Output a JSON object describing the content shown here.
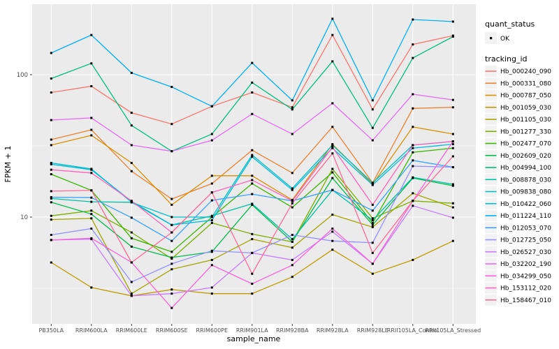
{
  "figure": {
    "background": "#FFFFFF",
    "panel_background": "#EBEBEB",
    "grid_color": "#FFFFFF",
    "tick_label_color": "#4D4D4D",
    "axis_title_color": "#000000",
    "point_color": "#000000",
    "legend_key_background": "#F2F2F2"
  },
  "axes": {
    "x_title": "sample_name",
    "y_title": "FPKM + 1",
    "y_scale": "log10",
    "y_tick_labels": [
      "100",
      "10"
    ],
    "y_tick_values": [
      100,
      10
    ],
    "y_minor_values": [
      316.23,
      31.62,
      3.162
    ]
  },
  "legend": {
    "quant_title": "quant_status",
    "quant_items": [
      {
        "label": "OK",
        "marker": "black-point"
      }
    ],
    "tracking_title": "tracking_id"
  },
  "chart_data": {
    "type": "line",
    "title": "",
    "xlabel": "sample_name",
    "ylabel": "FPKM + 1",
    "y_scale": "log10",
    "grid": true,
    "legend_position": "right",
    "point_marker": "small black square (quant_status = OK)",
    "categories": [
      "PB350LA",
      "RRIM600LA",
      "RRIM600LE",
      "RRIM600SE",
      "RRIM600PE",
      "RRIM901LA",
      "RRIM928BA",
      "RRIM928LA",
      "RRIM928LE",
      "RRII105LA_Control",
      "RRII105LA_Stressed"
    ],
    "series": [
      {
        "name": "Hb_000240_090",
        "color": "#F8766D",
        "values": [
          75,
          83,
          54,
          45,
          60,
          75,
          59,
          190,
          57,
          163,
          188
        ]
      },
      {
        "name": "Hb_000331_080",
        "color": "#EA8331",
        "values": [
          35,
          41,
          21,
          13.4,
          17.2,
          29.5,
          20.4,
          43,
          17.4,
          58,
          59
        ]
      },
      {
        "name": "Hb_000787_050",
        "color": "#D89000",
        "values": [
          32,
          37.5,
          24,
          12.2,
          19.5,
          19.5,
          13.2,
          32.5,
          17,
          43,
          38.3
        ]
      },
      {
        "name": "Hb_001059_030",
        "color": "#C09B00",
        "values": [
          4.8,
          3.2,
          2.8,
          3.1,
          2.9,
          2.9,
          3.8,
          5.9,
          4.0,
          5.0,
          6.8
        ]
      },
      {
        "name": "Hb_001105_030",
        "color": "#A3A500",
        "values": [
          9.6,
          9.8,
          2.9,
          4.3,
          5.0,
          7.0,
          6.1,
          10.4,
          8.5,
          14.7,
          11.7
        ]
      },
      {
        "name": "Hb_001277_330",
        "color": "#7CAE00",
        "values": [
          10.2,
          11.1,
          7.8,
          5.1,
          9.1,
          7.6,
          6.7,
          21.8,
          9.8,
          13.0,
          12.5
        ]
      },
      {
        "name": "Hb_002477_070",
        "color": "#39B600",
        "values": [
          20.0,
          15.4,
          7.1,
          5.7,
          10.0,
          17.2,
          11.7,
          20.6,
          9.1,
          28.5,
          30.5
        ]
      },
      {
        "name": "Hb_002609_020",
        "color": "#00BB4E",
        "values": [
          12.7,
          10.5,
          6.2,
          5.2,
          5.7,
          12.2,
          6.7,
          18.8,
          8.8,
          18.8,
          16.6
        ]
      },
      {
        "name": "Hb_004994_100",
        "color": "#00BF7D",
        "values": [
          94,
          120,
          44,
          29,
          38.3,
          88,
          57,
          124,
          42.3,
          131,
          185
        ]
      },
      {
        "name": "Hb_008878_030",
        "color": "#00C1A3",
        "values": [
          13.5,
          12.8,
          12.7,
          8.8,
          10.2,
          12.4,
          7.0,
          15.5,
          9.5,
          19.0,
          17.0
        ]
      },
      {
        "name": "Hb_009838_080",
        "color": "#00BFC4",
        "values": [
          24,
          21.8,
          12.7,
          10.0,
          10.0,
          27.3,
          15.9,
          32,
          17.4,
          32,
          34
        ]
      },
      {
        "name": "Hb_010422_060",
        "color": "#00BAE0",
        "values": [
          23.5,
          21.5,
          12.9,
          8.8,
          9.5,
          26.5,
          15.5,
          30.5,
          16.8,
          30.5,
          32.5
        ]
      },
      {
        "name": "Hb_011224_110",
        "color": "#00B0F6",
        "values": [
          142,
          190,
          103,
          82,
          60,
          121,
          66,
          247,
          66,
          244,
          236
        ]
      },
      {
        "name": "Hb_012053_070",
        "color": "#35A2FF",
        "values": [
          13.8,
          13.7,
          9.9,
          6.8,
          13.1,
          14.5,
          13.0,
          15.5,
          11.1,
          25,
          22.4
        ]
      },
      {
        "name": "Hb_012725_050",
        "color": "#9590FF",
        "values": [
          7.5,
          8.3,
          3.5,
          4.7,
          5.8,
          5.6,
          7.5,
          6.8,
          6.6,
          22.8,
          22.4
        ]
      },
      {
        "name": "Hb_026527_030",
        "color": "#C77CFF",
        "values": [
          6.9,
          7.0,
          2.8,
          2.9,
          3.2,
          5.6,
          5.0,
          7.9,
          4.7,
          12.0,
          9.9
        ]
      },
      {
        "name": "Hb_032202_190",
        "color": "#E76BF3",
        "values": [
          48,
          49.7,
          32,
          29,
          34.6,
          53,
          38.3,
          63,
          34.6,
          72.9,
          66.5
        ]
      },
      {
        "name": "Hb_034299_050",
        "color": "#FA62DB",
        "values": [
          6.9,
          7.1,
          4.8,
          2.3,
          4.6,
          3.4,
          4.6,
          8.3,
          4.7,
          13.0,
          34
        ]
      },
      {
        "name": "Hb_153112_020",
        "color": "#FF62BC",
        "values": [
          21.5,
          20.4,
          13.0,
          7.8,
          14.9,
          18.2,
          13.0,
          31,
          12.2,
          32,
          34
        ]
      },
      {
        "name": "Hb_158467_010",
        "color": "#FF6A98",
        "values": [
          15.2,
          15.4,
          4.8,
          7.8,
          14.9,
          4.0,
          12.5,
          28,
          5.6,
          13.0,
          26.7
        ]
      }
    ]
  }
}
